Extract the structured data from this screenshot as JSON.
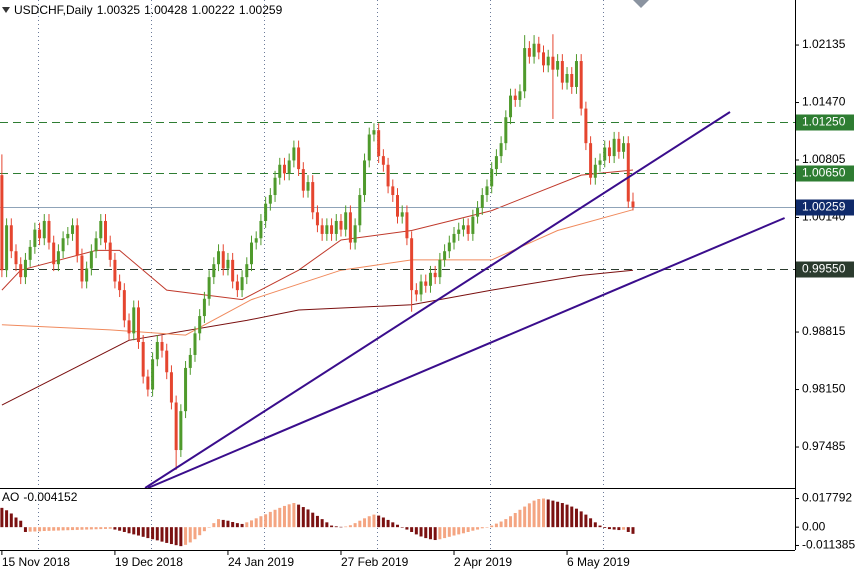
{
  "chart_data": {
    "type": "candlestick",
    "title": "USDCHF,Daily",
    "xlim": [
      -0.4,
      168.4
    ],
    "xticks": [
      {
        "value": 0,
        "label": "15 Nov 2018"
      },
      {
        "value": 24,
        "label": "19 Dec 2018"
      },
      {
        "value": 48,
        "label": "24 Jan 2019"
      },
      {
        "value": 72,
        "label": "27 Feb 2019"
      },
      {
        "value": 96,
        "label": "2 Apr 2019"
      },
      {
        "value": 120,
        "label": "6 May 2019"
      }
    ],
    "ylim": [
      0.97011,
      1.02656
    ],
    "yticks": [
      1.02135,
      {
        "value": 1.0147,
        "label": "1.01470"
      },
      1.00805,
      {
        "value": 1.0014,
        "label": "1.00140"
      },
      0.98815,
      {
        "value": 0.9815,
        "label": "0.98150"
      },
      0.97485
    ],
    "grid": true,
    "up_color": "#4f9a2c",
    "down_color": "#e5452f",
    "open": [
      1.0063,
      0.9953,
      1.0005,
      0.9975,
      0.996,
      0.9945,
      0.9965,
      0.998,
      1.0,
      0.999,
      1.001,
      0.9985,
      0.996,
      0.9975,
      0.999,
      0.9995,
      1.0005,
      0.997,
      0.994,
      0.9955,
      0.9975,
      0.999,
      1.001,
      0.9985,
      0.9965,
      0.994,
      0.993,
      0.9895,
      0.988,
      0.991,
      0.987,
      0.983,
      0.9815,
      0.985,
      0.987,
      0.986,
      0.9835,
      0.98,
      0.9745,
      0.979,
      0.984,
      0.9855,
      0.988,
      0.99,
      0.992,
      0.9945,
      0.996,
      0.9975,
      0.9955,
      0.9965,
      0.994,
      0.993,
      0.9945,
      0.996,
      0.9985,
      0.999,
      1.001,
      1.003,
      1.004,
      1.006,
      1.0075,
      1.0065,
      1.008,
      1.0095,
      1.007,
      1.0045,
      1.0055,
      1.002,
      1.0005,
      0.9995,
      1.0005,
      0.9995,
      1.001,
      1.0,
      1.002,
      0.9985,
      1.0005,
      1.004,
      1.008,
      1.011,
      1.0115,
      1.0085,
      1.0075,
      1.005,
      1.004,
      1.0015,
      1.002,
      0.999,
      0.993,
      0.9925,
      0.994,
      0.9935,
      0.995,
      0.9945,
      0.9965,
      0.9975,
      0.9985,
      0.9995,
      1.0,
      1.0005,
      0.9995,
      1.0015,
      1.0025,
      1.004,
      1.005,
      1.007,
      1.0085,
      1.01,
      1.013,
      1.0155,
      1.015,
      1.016,
      1.021,
      1.02,
      1.0215,
      1.0205,
      1.019,
      1.02,
      1.0185,
      1.0195,
      1.017,
      1.018,
      1.0165,
      1.0195,
      1.014,
      1.01,
      1.006,
      1.0075,
      1.008,
      1.0095,
      1.0085,
      1.0105,
      1.009,
      1.01,
      1.00325
    ],
    "high": [
      1.0087,
      1.0013,
      1.0013,
      0.9983,
      0.9968,
      0.9973,
      0.9988,
      1.0008,
      1.0008,
      1.0018,
      1.0018,
      0.9993,
      0.9983,
      0.9998,
      1.0003,
      1.0013,
      1.0013,
      0.9978,
      0.9963,
      0.9983,
      0.9998,
      1.0018,
      1.0018,
      0.9993,
      0.9973,
      0.9948,
      0.9938,
      0.9903,
      0.9918,
      0.9918,
      0.9878,
      0.9838,
      0.9858,
      0.9878,
      0.9878,
      0.9868,
      0.9843,
      0.9808,
      0.9798,
      0.9848,
      0.9863,
      0.9888,
      0.9908,
      0.9928,
      0.9953,
      0.9968,
      0.9983,
      0.9983,
      0.9973,
      0.9973,
      0.9948,
      0.9953,
      0.9968,
      0.9993,
      0.9998,
      1.0018,
      1.0038,
      1.0048,
      1.0068,
      1.0083,
      1.0083,
      1.0088,
      1.0103,
      1.0103,
      1.0078,
      1.0063,
      1.0063,
      1.0028,
      1.0013,
      1.0013,
      1.0013,
      1.0018,
      1.0018,
      1.0028,
      1.0028,
      1.0013,
      1.0048,
      1.0088,
      1.0118,
      1.0123,
      1.0123,
      1.0093,
      1.0083,
      1.0058,
      1.0048,
      1.0028,
      1.0028,
      0.9998,
      0.9938,
      0.9948,
      0.9948,
      0.9958,
      0.9958,
      0.9973,
      0.9983,
      0.9993,
      1.0003,
      1.0008,
      1.0013,
      1.0013,
      1.0023,
      1.0033,
      1.0048,
      1.0058,
      1.0078,
      1.0093,
      1.0108,
      1.0138,
      1.0163,
      1.0163,
      1.0168,
      1.0225,
      1.0218,
      1.0225,
      1.0223,
      1.0213,
      1.0208,
      1.0226,
      1.0203,
      1.0203,
      1.0188,
      1.0188,
      1.0203,
      1.0203,
      1.0148,
      1.0108,
      1.0083,
      1.0088,
      1.0103,
      1.0103,
      1.0113,
      1.0113,
      1.0108,
      1.0108,
      1.00428
    ],
    "low": [
      0.9945,
      0.9945,
      0.9967,
      0.9952,
      0.9937,
      0.9937,
      0.9957,
      0.9972,
      0.9982,
      0.9982,
      0.9977,
      0.9952,
      0.9952,
      0.9967,
      0.9982,
      0.9987,
      0.9962,
      0.9932,
      0.9932,
      0.9947,
      0.9967,
      0.9982,
      0.9977,
      0.9957,
      0.9932,
      0.9922,
      0.9887,
      0.9872,
      0.9872,
      0.9862,
      0.9822,
      0.9807,
      0.9807,
      0.9842,
      0.9852,
      0.9827,
      0.9792,
      0.9722,
      0.9737,
      0.9782,
      0.9832,
      0.9847,
      0.9872,
      0.9892,
      0.9912,
      0.9937,
      0.9952,
      0.9947,
      0.9947,
      0.9932,
      0.9922,
      0.9922,
      0.9937,
      0.9952,
      0.9977,
      0.9982,
      1.0002,
      1.0022,
      1.0032,
      1.0052,
      1.0057,
      1.0057,
      1.0072,
      1.0062,
      1.0037,
      1.0037,
      1.0012,
      0.9997,
      0.9987,
      0.9987,
      0.9987,
      0.9987,
      0.9992,
      0.9992,
      0.9977,
      0.9977,
      0.9997,
      1.0032,
      1.0072,
      1.0102,
      1.0077,
      1.0067,
      1.0042,
      1.0032,
      1.0007,
      1.0007,
      0.9982,
      0.9905,
      0.9917,
      0.9917,
      0.9927,
      0.9927,
      0.9937,
      0.9937,
      0.9957,
      0.9967,
      0.9977,
      0.9987,
      0.9992,
      0.9987,
      0.9987,
      1.0007,
      1.0017,
      1.0032,
      1.0042,
      1.0062,
      1.0077,
      1.0092,
      1.0122,
      1.0142,
      1.0142,
      1.0152,
      1.0192,
      1.0192,
      1.0197,
      1.0182,
      1.0182,
      1.0128,
      1.0177,
      1.0162,
      1.0162,
      1.0157,
      1.0157,
      1.0132,
      1.0092,
      1.0052,
      1.0052,
      1.0067,
      1.0072,
      1.0077,
      1.0077,
      1.0082,
      1.0082,
      1.0025,
      1.00222
    ],
    "close": [
      0.9953,
      1.0005,
      0.9975,
      0.996,
      0.9945,
      0.9965,
      0.998,
      1.0,
      0.999,
      1.001,
      0.9985,
      0.996,
      0.9975,
      0.999,
      0.9995,
      1.0005,
      0.997,
      0.994,
      0.9955,
      0.9975,
      0.999,
      1.001,
      0.9985,
      0.9965,
      0.994,
      0.993,
      0.9895,
      0.988,
      0.991,
      0.987,
      0.983,
      0.9815,
      0.985,
      0.987,
      0.986,
      0.9835,
      0.98,
      0.9745,
      0.979,
      0.984,
      0.9855,
      0.988,
      0.99,
      0.992,
      0.9945,
      0.996,
      0.9975,
      0.9955,
      0.9965,
      0.994,
      0.993,
      0.9945,
      0.996,
      0.9985,
      0.999,
      1.001,
      1.003,
      1.004,
      1.006,
      1.0075,
      1.0065,
      1.008,
      1.0095,
      1.007,
      1.0045,
      1.0055,
      1.002,
      1.0005,
      0.9995,
      1.0005,
      0.9995,
      1.001,
      1.0,
      1.002,
      0.9985,
      1.0005,
      1.004,
      1.008,
      1.011,
      1.0115,
      1.0085,
      1.0075,
      1.005,
      1.004,
      1.0015,
      1.002,
      0.999,
      0.993,
      0.9925,
      0.994,
      0.9935,
      0.995,
      0.9945,
      0.9965,
      0.9975,
      0.9985,
      0.9995,
      1.0,
      1.0005,
      0.9995,
      1.0015,
      1.0025,
      1.004,
      1.005,
      1.007,
      1.0085,
      1.01,
      1.013,
      1.0155,
      1.015,
      1.016,
      1.021,
      1.02,
      1.0215,
      1.0205,
      1.019,
      1.02,
      1.0185,
      1.0195,
      1.017,
      1.018,
      1.0165,
      1.0195,
      1.014,
      1.01,
      1.006,
      1.0075,
      1.008,
      1.0095,
      1.0085,
      1.0105,
      1.009,
      1.01,
      1.00325,
      1.00259
    ],
    "moving_averages": [
      {
        "color": "#7a0f0f",
        "x": [
          0,
          27,
          52,
          63,
          87,
          104,
          123,
          134
        ],
        "values": [
          0.9797,
          0.9872,
          0.9895,
          0.9907,
          0.9913,
          0.993,
          0.9947,
          0.9953
        ]
      },
      {
        "color": "#c0392b",
        "x": [
          0,
          4,
          20,
          25,
          35,
          51,
          63,
          72,
          87,
          104,
          123,
          134
        ],
        "values": [
          0.993,
          0.9953,
          0.9976,
          0.9976,
          0.993,
          0.9919,
          0.9953,
          0.9988,
          0.9999,
          1.0022,
          1.0063,
          1.0069
        ]
      },
      {
        "color": "#f08a5d",
        "x": [
          0,
          23,
          39,
          53,
          72,
          87,
          104,
          118,
          134
        ],
        "values": [
          0.989,
          0.9884,
          0.9878,
          0.9919,
          0.9953,
          0.9965,
          0.9965,
          0.9999,
          1.0023
        ]
      }
    ],
    "trendlines": [
      {
        "color": "#3a0d8c",
        "x": [
          30.4,
          154.6
        ],
        "values": [
          0.97011,
          1.0136
        ]
      },
      {
        "color": "#3a0d8c",
        "x": [
          31.0,
          166.2
        ],
        "values": [
          0.97011,
          1.00134
        ]
      }
    ],
    "levels": [
      {
        "value": 1.0125,
        "label": "1.01250",
        "color": "#2e7d32"
      },
      {
        "value": 1.0065,
        "label": "1.00650",
        "color": "#2e7d32"
      },
      {
        "value": 0.9955,
        "label": "0.99550",
        "color": "#2b3b2e"
      }
    ],
    "current_color": "#0f2a6a",
    "indicator": {
      "type": "bar",
      "name": "AO",
      "up_color": "#f4a582",
      "down_color": "#7b1111",
      "ylim": [
        -0.0142,
        0.0231
      ],
      "yticks": [
        0.017792,
        {
          "value": 0,
          "label": "0.00"
        },
        -0.011385
      ],
      "values": [
        0.012,
        0.0105,
        0.0085,
        0.006,
        0.004,
        -0.003,
        -0.0028,
        -0.0027,
        -0.0026,
        -0.0024,
        -0.0023,
        -0.0022,
        -0.0021,
        -0.002,
        -0.0019,
        -0.0018,
        -0.0017,
        -0.0016,
        -0.0015,
        -0.0014,
        -0.0013,
        -0.0012,
        -0.0011,
        -0.001,
        -0.0015,
        -0.0022,
        -0.003,
        -0.0038,
        -0.0045,
        -0.0052,
        -0.006,
        -0.0068,
        -0.0075,
        -0.0082,
        -0.009,
        -0.0098,
        -0.0105,
        -0.0112,
        -0.0118,
        -0.011,
        -0.0095,
        -0.0075,
        -0.005,
        -0.0025,
        0.0,
        0.0025,
        0.005,
        0.0045,
        0.004,
        0.0032,
        0.0025,
        0.002,
        0.003,
        0.0042,
        0.0055,
        0.0068,
        0.008,
        0.0095,
        0.0108,
        0.012,
        0.0132,
        0.0142,
        0.015,
        0.014,
        0.0125,
        0.011,
        0.009,
        0.007,
        0.005,
        0.003,
        0.001,
        0.0005,
        0.0002,
        0.0004,
        0.0012,
        0.0025,
        0.004,
        0.0055,
        0.0068,
        0.0078,
        0.0072,
        0.006,
        0.0045,
        0.003,
        0.0015,
        0.0,
        -0.0015,
        -0.003,
        -0.0045,
        -0.0058,
        -0.0068,
        -0.0075,
        -0.008,
        -0.0075,
        -0.0068,
        -0.006,
        -0.0052,
        -0.0045,
        -0.0038,
        -0.003,
        -0.0022,
        -0.0015,
        -0.0007,
        0.0,
        0.001,
        0.0022,
        0.0035,
        0.005,
        0.0068,
        0.0088,
        0.0108,
        0.0128,
        0.0148,
        0.0165,
        0.0175,
        0.0178,
        0.0172,
        0.0165,
        0.0158,
        0.015,
        0.014,
        0.0128,
        0.0115,
        0.0098,
        0.0078,
        0.0055,
        0.003,
        0.001,
        -0.0005,
        -0.0012,
        -0.0015,
        -0.0018,
        -0.0016,
        -0.003,
        -0.004152
      ]
    }
  }
}
